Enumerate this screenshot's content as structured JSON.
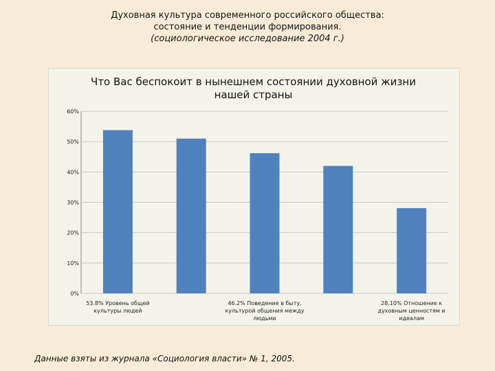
{
  "slide": {
    "title_line1": "Духовная культура современного российского общества:",
    "title_line2": "состояние и тенденции формирования.",
    "subtitle": "(социологическое исследование 2004 г.)",
    "source": "Данные взяты из журнала «Социология власти» № 1, 2005."
  },
  "colors": {
    "bar": "#4f81bd",
    "grid": "#c8c8c8",
    "background": "#f8ecd8",
    "panel": "#f3f3ea"
  },
  "chart_data": {
    "type": "bar",
    "title": "Что Вас беспокоит в нынешнем состоянии духовной жизни нашей страны",
    "categories": [
      "53.8%          Уровень общей культуры людей",
      "",
      "46.2%     Поведение в быту, культурой общения между людьми",
      "",
      "28.10%   Отношение к духовным ценностям и идеалам"
    ],
    "values": [
      53.8,
      51,
      46.2,
      42,
      28.1
    ],
    "yticks": [
      "0%",
      "10%",
      "20%",
      "30%",
      "40%",
      "50%",
      "60%"
    ],
    "ylim": [
      0,
      60
    ],
    "grid": true,
    "legend": "none"
  }
}
